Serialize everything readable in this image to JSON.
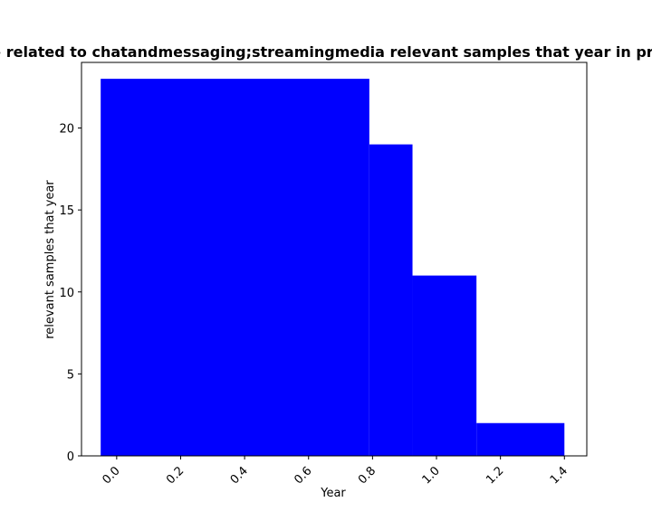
{
  "chart_data": {
    "type": "bar",
    "title": "e related to chatandmessaging;streamingmedia relevant samples that year in pr",
    "xlabel": "Year",
    "ylabel": "relevant samples that year",
    "bar_color": "#0000ff",
    "grid": false,
    "xlim": [
      -0.11,
      1.47
    ],
    "ylim": [
      0,
      24
    ],
    "x_ticks": [
      0.0,
      0.2,
      0.4,
      0.6,
      0.8,
      1.0,
      1.2,
      1.4
    ],
    "x_tick_labels": [
      "0.0",
      "0.2",
      "0.4",
      "0.6",
      "0.8",
      "1.0",
      "1.2",
      "1.4"
    ],
    "y_ticks": [
      0,
      5,
      10,
      15,
      20
    ],
    "y_tick_labels": [
      "0",
      "5",
      "10",
      "15",
      "20"
    ],
    "bars": [
      {
        "x_start": -0.05,
        "x_end": 0.79,
        "value": 23
      },
      {
        "x_start": 0.79,
        "x_end": 0.925,
        "value": 19
      },
      {
        "x_start": 0.925,
        "x_end": 1.125,
        "value": 11
      },
      {
        "x_start": 1.125,
        "x_end": 1.4,
        "value": 2
      }
    ]
  }
}
